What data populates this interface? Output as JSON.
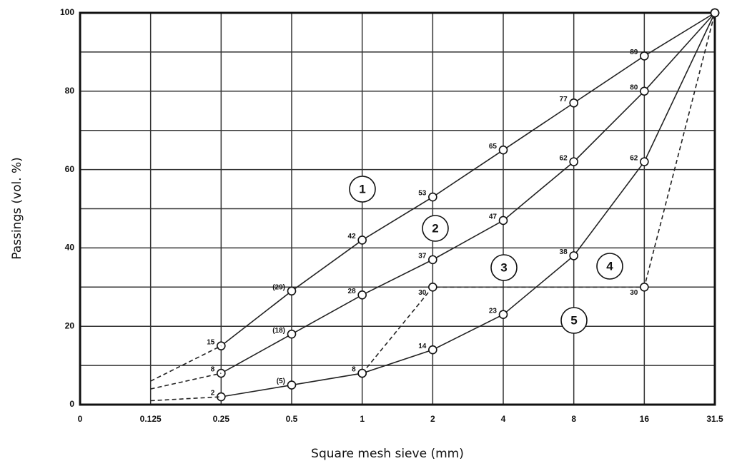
{
  "chart_data": {
    "type": "line",
    "x_label": "Square mesh sieve (mm)",
    "y_label": "Passings (vol. %)",
    "xticks": [
      0,
      0.125,
      0.25,
      0.5,
      1,
      2,
      4,
      8,
      16,
      31.5
    ],
    "ylim": [
      0,
      100
    ],
    "yticks": [
      0,
      20,
      40,
      60,
      80,
      100
    ],
    "ygrid": [
      0,
      10,
      20,
      30,
      40,
      50,
      60,
      70,
      80,
      90,
      100
    ],
    "grid": true,
    "series": [
      {
        "x": [
          0.25,
          0.5,
          1,
          2,
          4,
          8,
          16,
          31.5
        ],
        "values": [
          15,
          29,
          42,
          53,
          65,
          77,
          89,
          100
        ],
        "value_labels": [
          "15",
          "(29)",
          "42",
          "53",
          "65",
          "77",
          "89",
          null
        ],
        "color": "#222",
        "dashed": false,
        "markers": true
      },
      {
        "x": [
          0.25,
          0.5,
          1,
          2,
          4,
          8,
          16,
          31.5
        ],
        "values": [
          8,
          18,
          28,
          37,
          47,
          62,
          80,
          100
        ],
        "value_labels": [
          "8",
          "(18)",
          "28",
          "37",
          "47",
          "62",
          "80",
          null
        ],
        "color": "#222",
        "dashed": false,
        "markers": true
      },
      {
        "x": [
          0.25,
          0.5,
          1,
          2,
          4,
          8,
          16,
          31.5
        ],
        "values": [
          2,
          5,
          8,
          14,
          23,
          38,
          62,
          100
        ],
        "value_labels": [
          "2",
          "(5)",
          "8",
          "14",
          "23",
          "38",
          "62",
          null
        ],
        "color": "#222",
        "dashed": false,
        "markers": true
      },
      {
        "x": [
          1,
          2,
          16,
          31.5
        ],
        "values": [
          8,
          30,
          30,
          100
        ],
        "value_labels": [
          null,
          "30",
          "30",
          null
        ],
        "color": "#222",
        "dashed": true,
        "markers": true
      },
      {
        "x": [
          0.125,
          0.25
        ],
        "values": [
          6,
          15
        ],
        "color": "#222",
        "dashed": true,
        "markers": false
      },
      {
        "x": [
          0.125,
          0.25
        ],
        "values": [
          4,
          8
        ],
        "color": "#222",
        "dashed": true,
        "markers": false
      },
      {
        "x": [
          0.125,
          0.25
        ],
        "values": [
          1,
          2
        ],
        "color": "#222",
        "dashed": true,
        "markers": false
      }
    ],
    "annotations": [
      "1",
      "2",
      "3",
      "4",
      "5"
    ]
  }
}
